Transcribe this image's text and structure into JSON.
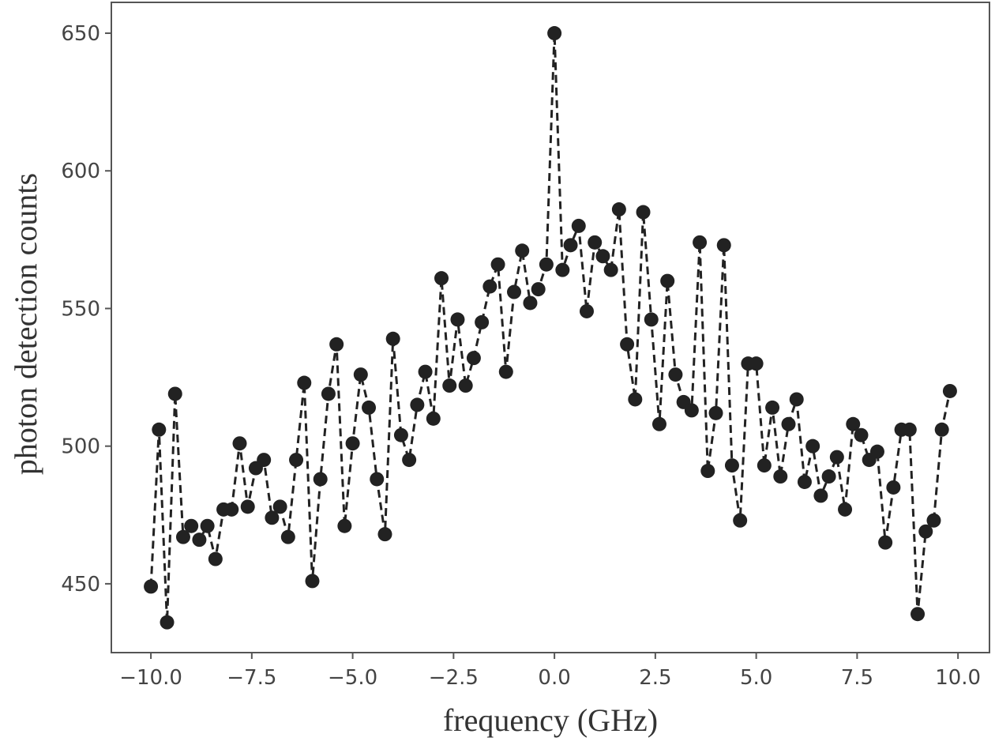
{
  "chart_data": {
    "type": "line",
    "x_label": "frequency (GHz)",
    "y_label": "photon detection counts",
    "x": [
      -10.0,
      -9.8,
      -9.6,
      -9.4,
      -9.2,
      -9.0,
      -8.8,
      -8.6,
      -8.4,
      -8.2,
      -8.0,
      -7.8,
      -7.6,
      -7.4,
      -7.2,
      -7.0,
      -6.8,
      -6.6,
      -6.4,
      -6.2,
      -6.0,
      -5.8,
      -5.6,
      -5.4,
      -5.2,
      -5.0,
      -4.8,
      -4.6,
      -4.4,
      -4.2,
      -4.0,
      -3.8,
      -3.6,
      -3.4,
      -3.2,
      -3.0,
      -2.8,
      -2.6,
      -2.4,
      -2.2,
      -2.0,
      -1.8,
      -1.6,
      -1.4,
      -1.2,
      -1.0,
      -0.8,
      -0.6,
      -0.4,
      -0.2,
      0.0,
      0.2,
      0.4,
      0.6,
      0.8,
      1.0,
      1.2,
      1.4,
      1.6,
      1.8,
      2.0,
      2.2,
      2.4,
      2.6,
      2.8,
      3.0,
      3.2,
      3.4,
      3.6,
      3.8,
      4.0,
      4.2,
      4.4,
      4.6,
      4.8,
      5.0,
      5.2,
      5.4,
      5.6,
      5.8,
      6.0,
      6.2,
      6.4,
      6.6,
      6.8,
      7.0,
      7.2,
      7.4,
      7.6,
      7.8,
      8.0,
      8.2,
      8.4,
      8.6,
      8.8,
      9.0,
      9.2,
      9.4,
      9.6,
      9.8
    ],
    "series": [
      {
        "color": "#222222",
        "values": [
          449,
          506,
          436,
          519,
          467,
          471,
          466,
          471,
          459,
          477,
          477,
          501,
          478,
          492,
          495,
          474,
          478,
          467,
          495,
          523,
          451,
          488,
          519,
          537,
          471,
          501,
          526,
          514,
          488,
          468,
          539,
          504,
          495,
          515,
          527,
          510,
          561,
          522,
          546,
          522,
          532,
          545,
          558,
          566,
          527,
          556,
          571,
          552,
          557,
          566,
          650,
          564,
          573,
          580,
          549,
          574,
          569,
          564,
          586,
          537,
          517,
          585,
          546,
          508,
          560,
          526,
          516,
          513,
          574,
          491,
          512,
          573,
          493,
          473,
          530,
          530,
          493,
          514,
          489,
          508,
          517,
          487,
          500,
          482,
          489,
          496,
          477,
          508,
          504,
          495,
          498,
          465,
          485,
          506,
          506,
          439,
          469,
          473,
          506,
          520
        ]
      }
    ],
    "xlim": [
      -10.98,
      10.78
    ],
    "ylim": [
      425,
      661.2
    ],
    "xticks": [
      {
        "value": -10,
        "label": "−10.0"
      },
      {
        "value": -7.5,
        "label": "−7.5"
      },
      {
        "value": -5,
        "label": "−5.0"
      },
      {
        "value": -2.5,
        "label": "−2.5"
      },
      {
        "value": 0,
        "label": "0.0"
      },
      2.5,
      {
        "value": 5,
        "label": "5.0"
      },
      7.5,
      {
        "value": 10,
        "label": "10.0"
      }
    ],
    "yticks": [
      450,
      500,
      550,
      600,
      650
    ]
  }
}
